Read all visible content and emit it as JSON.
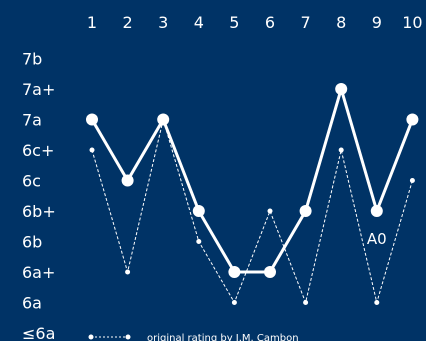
{
  "chart_data": {
    "type": "line",
    "background": "#003366",
    "line_color": "#ffffff",
    "categories": [
      "1",
      "2",
      "3",
      "4",
      "5",
      "6",
      "7",
      "8",
      "9",
      "10"
    ],
    "y_categories": [
      "≤6a",
      "6a",
      "6a+",
      "6b",
      "6b+",
      "6c",
      "6c+",
      "7a",
      "7a+",
      "7b"
    ],
    "series": [
      {
        "style": "solid",
        "values": [
          "7a",
          "6c",
          "7a",
          "6b+",
          "6a+",
          "6a+",
          "6b+",
          "7a+",
          "6b+",
          "7a"
        ]
      },
      {
        "name": "original rating by J.M. Cambon",
        "style": "dashed",
        "values": [
          "6c+",
          "6a+",
          "7a",
          "6b",
          "6a",
          "6b+",
          "6a",
          "6c+",
          "6a",
          "6c"
        ]
      }
    ],
    "annotations": [
      {
        "category": "9",
        "text": "A0"
      }
    ],
    "legend": {
      "position": "bottom",
      "label": "original rating by J.M. Cambon"
    }
  }
}
